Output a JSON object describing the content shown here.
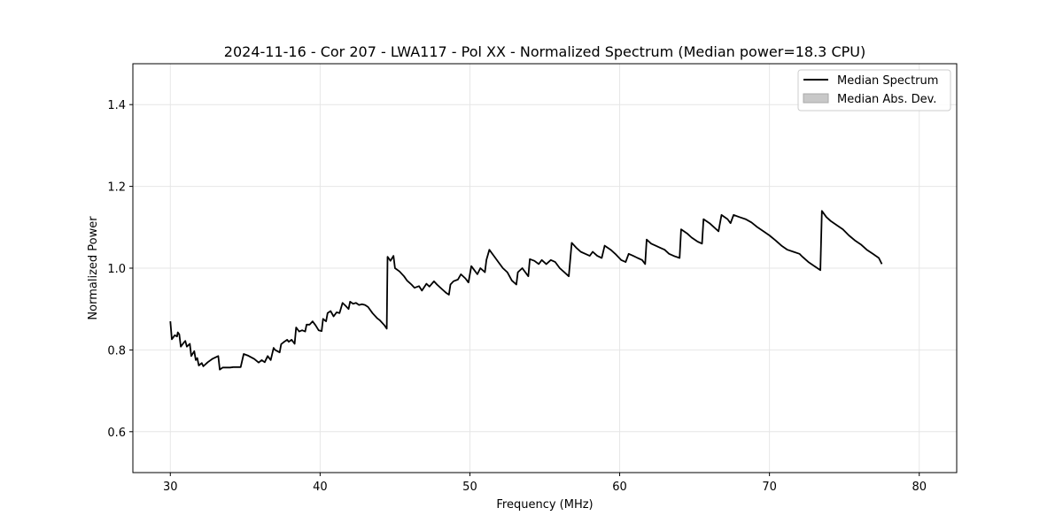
{
  "chart_data": {
    "type": "line",
    "title": "2024-11-16 - Cor 207 - LWA117 - Pol XX - Normalized Spectrum (Median power=18.3 CPU)",
    "xlabel": "Frequency (MHz)",
    "ylabel": "Normalized Power",
    "xlim": [
      27.5,
      82.5
    ],
    "ylim": [
      0.5,
      1.5
    ],
    "xticks": [
      30,
      40,
      50,
      60,
      70,
      80
    ],
    "xtick_labels": [
      "30",
      "40",
      "50",
      "60",
      "70",
      "80"
    ],
    "yticks": [
      0.6,
      0.8,
      1.0,
      1.2,
      1.4
    ],
    "ytick_labels": [
      "0.6",
      "0.8",
      "1.0",
      "1.2",
      "1.4"
    ],
    "grid": true,
    "legend_position": "top-right",
    "legend": [
      {
        "label": "Median Spectrum",
        "kind": "line",
        "color": "#000000"
      },
      {
        "label": "Median Abs. Dev.",
        "kind": "patch",
        "color": "#c8c8c8"
      }
    ],
    "series": [
      {
        "name": "Median Spectrum",
        "color": "#000000",
        "points": [
          [
            30.0,
            0.87
          ],
          [
            30.1,
            0.826
          ],
          [
            30.3,
            0.836
          ],
          [
            30.45,
            0.833
          ],
          [
            30.5,
            0.843
          ],
          [
            30.6,
            0.838
          ],
          [
            30.7,
            0.808
          ],
          [
            30.9,
            0.818
          ],
          [
            31.0,
            0.822
          ],
          [
            31.1,
            0.808
          ],
          [
            31.3,
            0.815
          ],
          [
            31.4,
            0.785
          ],
          [
            31.6,
            0.797
          ],
          [
            31.7,
            0.775
          ],
          [
            31.8,
            0.78
          ],
          [
            31.9,
            0.762
          ],
          [
            32.1,
            0.768
          ],
          [
            32.2,
            0.76
          ],
          [
            32.5,
            0.77
          ],
          [
            32.8,
            0.778
          ],
          [
            33.2,
            0.785
          ],
          [
            33.3,
            0.752
          ],
          [
            33.5,
            0.757
          ],
          [
            34.0,
            0.757
          ],
          [
            34.2,
            0.758
          ],
          [
            34.6,
            0.758
          ],
          [
            34.7,
            0.758
          ],
          [
            34.9,
            0.79
          ],
          [
            35.2,
            0.786
          ],
          [
            35.6,
            0.778
          ],
          [
            35.9,
            0.769
          ],
          [
            36.1,
            0.775
          ],
          [
            36.3,
            0.77
          ],
          [
            36.5,
            0.785
          ],
          [
            36.7,
            0.775
          ],
          [
            36.9,
            0.805
          ],
          [
            37.0,
            0.8
          ],
          [
            37.3,
            0.794
          ],
          [
            37.4,
            0.814
          ],
          [
            37.6,
            0.82
          ],
          [
            37.8,
            0.825
          ],
          [
            37.9,
            0.82
          ],
          [
            38.1,
            0.825
          ],
          [
            38.3,
            0.815
          ],
          [
            38.4,
            0.855
          ],
          [
            38.6,
            0.845
          ],
          [
            38.8,
            0.848
          ],
          [
            39.0,
            0.845
          ],
          [
            39.1,
            0.862
          ],
          [
            39.3,
            0.862
          ],
          [
            39.5,
            0.87
          ],
          [
            39.7,
            0.86
          ],
          [
            39.9,
            0.848
          ],
          [
            40.1,
            0.846
          ],
          [
            40.2,
            0.876
          ],
          [
            40.4,
            0.87
          ],
          [
            40.5,
            0.89
          ],
          [
            40.7,
            0.895
          ],
          [
            40.9,
            0.882
          ],
          [
            41.1,
            0.892
          ],
          [
            41.3,
            0.89
          ],
          [
            41.5,
            0.915
          ],
          [
            41.7,
            0.908
          ],
          [
            41.9,
            0.9
          ],
          [
            42.0,
            0.918
          ],
          [
            42.2,
            0.913
          ],
          [
            42.4,
            0.915
          ],
          [
            42.6,
            0.91
          ],
          [
            42.8,
            0.912
          ],
          [
            43.0,
            0.91
          ],
          [
            43.2,
            0.905
          ],
          [
            43.5,
            0.89
          ],
          [
            43.8,
            0.878
          ],
          [
            44.0,
            0.872
          ],
          [
            44.3,
            0.86
          ],
          [
            44.45,
            0.852
          ],
          [
            44.5,
            1.028
          ],
          [
            44.7,
            1.018
          ],
          [
            44.9,
            1.03
          ],
          [
            45.0,
            1.0
          ],
          [
            45.3,
            0.992
          ],
          [
            45.6,
            0.98
          ],
          [
            45.8,
            0.97
          ],
          [
            46.1,
            0.96
          ],
          [
            46.3,
            0.952
          ],
          [
            46.6,
            0.956
          ],
          [
            46.8,
            0.945
          ],
          [
            47.1,
            0.962
          ],
          [
            47.3,
            0.955
          ],
          [
            47.6,
            0.968
          ],
          [
            47.8,
            0.96
          ],
          [
            48.1,
            0.95
          ],
          [
            48.4,
            0.94
          ],
          [
            48.6,
            0.935
          ],
          [
            48.7,
            0.96
          ],
          [
            48.9,
            0.968
          ],
          [
            49.2,
            0.972
          ],
          [
            49.4,
            0.985
          ],
          [
            49.7,
            0.975
          ],
          [
            49.9,
            0.965
          ],
          [
            50.1,
            1.005
          ],
          [
            50.3,
            0.995
          ],
          [
            50.5,
            0.985
          ],
          [
            50.7,
            1.0
          ],
          [
            51.0,
            0.99
          ],
          [
            51.1,
            1.02
          ],
          [
            51.3,
            1.045
          ],
          [
            51.6,
            1.03
          ],
          [
            51.9,
            1.015
          ],
          [
            52.2,
            1.0
          ],
          [
            52.5,
            0.99
          ],
          [
            52.8,
            0.97
          ],
          [
            53.1,
            0.96
          ],
          [
            53.2,
            0.99
          ],
          [
            53.5,
            1.0
          ],
          [
            53.9,
            0.98
          ],
          [
            54.0,
            1.022
          ],
          [
            54.3,
            1.018
          ],
          [
            54.6,
            1.01
          ],
          [
            54.8,
            1.02
          ],
          [
            55.1,
            1.01
          ],
          [
            55.4,
            1.02
          ],
          [
            55.7,
            1.015
          ],
          [
            56.0,
            1.0
          ],
          [
            56.3,
            0.99
          ],
          [
            56.6,
            0.98
          ],
          [
            56.8,
            1.062
          ],
          [
            57.1,
            1.05
          ],
          [
            57.4,
            1.04
          ],
          [
            57.7,
            1.035
          ],
          [
            58.0,
            1.03
          ],
          [
            58.2,
            1.04
          ],
          [
            58.5,
            1.03
          ],
          [
            58.8,
            1.025
          ],
          [
            59.0,
            1.055
          ],
          [
            59.4,
            1.045
          ],
          [
            59.7,
            1.035
          ],
          [
            60.1,
            1.02
          ],
          [
            60.4,
            1.015
          ],
          [
            60.6,
            1.035
          ],
          [
            60.9,
            1.03
          ],
          [
            61.2,
            1.025
          ],
          [
            61.5,
            1.02
          ],
          [
            61.7,
            1.01
          ],
          [
            61.8,
            1.07
          ],
          [
            62.1,
            1.06
          ],
          [
            62.4,
            1.055
          ],
          [
            62.7,
            1.05
          ],
          [
            63.0,
            1.045
          ],
          [
            63.3,
            1.035
          ],
          [
            63.6,
            1.03
          ],
          [
            64.0,
            1.025
          ],
          [
            64.1,
            1.095
          ],
          [
            64.5,
            1.085
          ],
          [
            64.8,
            1.075
          ],
          [
            65.2,
            1.065
          ],
          [
            65.5,
            1.06
          ],
          [
            65.6,
            1.12
          ],
          [
            66.0,
            1.11
          ],
          [
            66.3,
            1.1
          ],
          [
            66.6,
            1.09
          ],
          [
            66.8,
            1.13
          ],
          [
            67.2,
            1.12
          ],
          [
            67.4,
            1.11
          ],
          [
            67.6,
            1.13
          ],
          [
            68.0,
            1.125
          ],
          [
            68.4,
            1.12
          ],
          [
            68.8,
            1.112
          ],
          [
            69.2,
            1.1
          ],
          [
            69.6,
            1.09
          ],
          [
            70.0,
            1.08
          ],
          [
            70.4,
            1.068
          ],
          [
            70.8,
            1.055
          ],
          [
            71.2,
            1.045
          ],
          [
            71.6,
            1.04
          ],
          [
            72.0,
            1.035
          ],
          [
            72.2,
            1.028
          ],
          [
            72.6,
            1.015
          ],
          [
            73.0,
            1.005
          ],
          [
            73.4,
            0.995
          ],
          [
            73.5,
            1.14
          ],
          [
            73.8,
            1.125
          ],
          [
            74.1,
            1.115
          ],
          [
            74.5,
            1.105
          ],
          [
            74.9,
            1.095
          ],
          [
            75.3,
            1.08
          ],
          [
            75.7,
            1.068
          ],
          [
            76.1,
            1.058
          ],
          [
            76.5,
            1.045
          ],
          [
            76.9,
            1.035
          ],
          [
            77.3,
            1.025
          ],
          [
            77.5,
            1.01
          ]
        ]
      }
    ]
  }
}
